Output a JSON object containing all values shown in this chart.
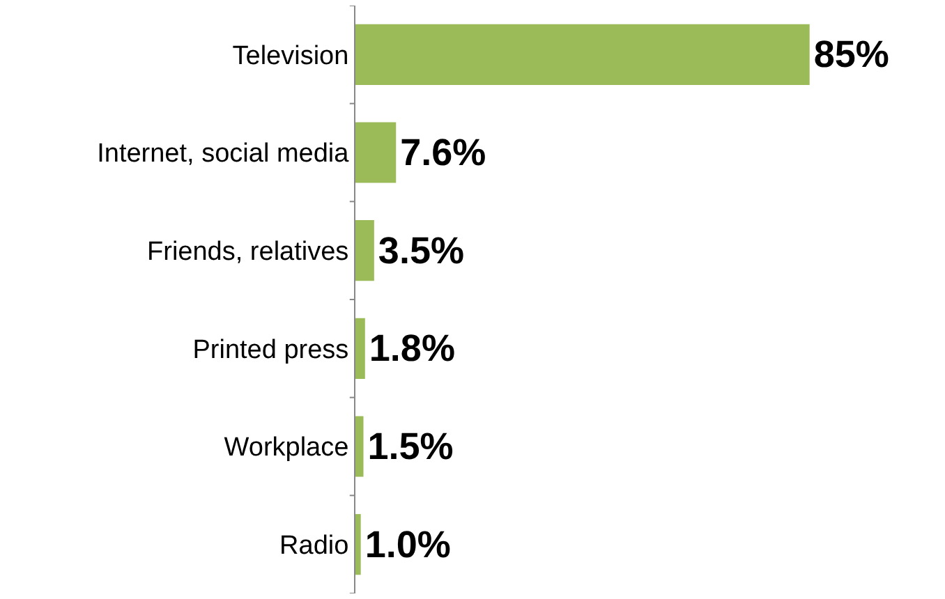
{
  "chart_data": {
    "type": "bar",
    "orientation": "horizontal",
    "categories": [
      "Television",
      "Internet, social media",
      "Friends, relatives",
      "Printed press",
      "Workplace",
      "Radio"
    ],
    "values": [
      85,
      7.6,
      3.5,
      1.8,
      1.5,
      1.0
    ],
    "value_labels": [
      "85%",
      "7.6%",
      "3.5%",
      "1.8%",
      "1.5%",
      "1.0%"
    ],
    "color": "#9bbb59",
    "tick_labels": "y"
  }
}
